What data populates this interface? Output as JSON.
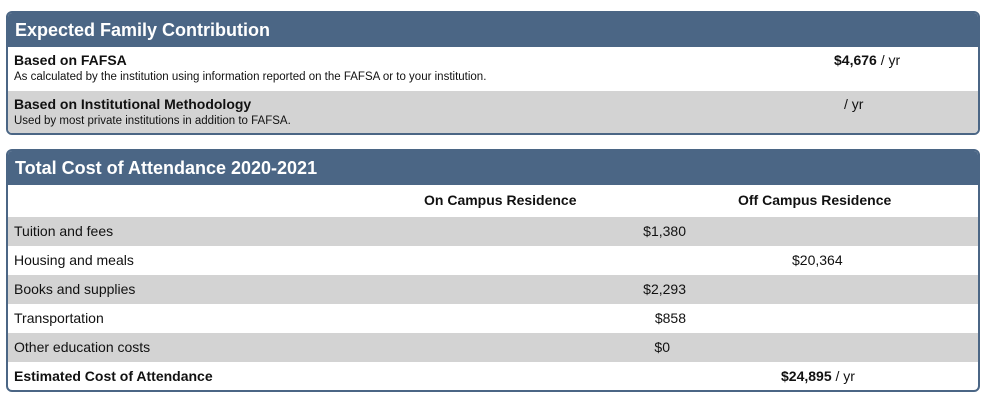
{
  "efc": {
    "title": "Expected Family Contribution",
    "rows": [
      {
        "label": "Based on FAFSA",
        "description": "As calculated by the institution using information reported on the FAFSA or to your institution.",
        "amount": "$4,676",
        "unit": " / yr"
      },
      {
        "label": "Based on Institutional Methodology",
        "description": "Used by most private institutions in addition to FAFSA.",
        "amount": "",
        "unit": "/ yr"
      }
    ]
  },
  "coa": {
    "title": "Total Cost of Attendance 2020-2021",
    "columns": {
      "on_campus": "On Campus Residence",
      "off_campus": "Off Campus Residence"
    },
    "rows": [
      {
        "label": "Tuition and fees",
        "on_campus": "$1,380",
        "off_campus": ""
      },
      {
        "label": "Housing and meals",
        "on_campus": "",
        "off_campus": "$20,364"
      },
      {
        "label": "Books and supplies",
        "on_campus": "$2,293",
        "off_campus": ""
      },
      {
        "label": "Transportation",
        "on_campus": "$858",
        "off_campus": ""
      },
      {
        "label": "Other education costs",
        "on_campus": "$0",
        "off_campus": ""
      }
    ],
    "total": {
      "label": "Estimated Cost of Attendance",
      "amount": "$24,895",
      "unit": " / yr"
    }
  },
  "colors": {
    "header_bg": "#4b6685",
    "alt_row_bg": "#d3d3d3"
  }
}
